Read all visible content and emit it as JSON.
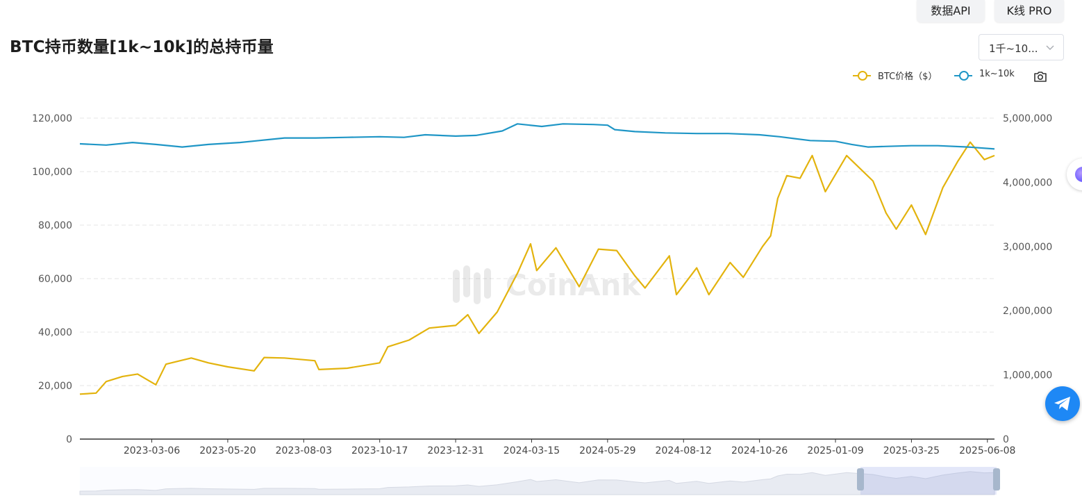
{
  "header": {
    "api_button": "数据API",
    "kline_button": "K线 PRO",
    "title": "BTC持币数量[1k~10k]的总持币量",
    "range_select": {
      "value": "1千~10...",
      "options": [
        "1千~10..."
      ]
    }
  },
  "legend": [
    {
      "name": "BTC价格（$）",
      "color": "#e3b30d"
    },
    {
      "name": "1k~10k",
      "color": "#1f96c6"
    }
  ],
  "icons": {
    "camera": "camera-icon",
    "telegram": "telegram-icon",
    "chevron": "chevron-down-icon"
  },
  "watermark": "CoinAnk",
  "chart_data": {
    "type": "line",
    "x_start": "2022-12-25",
    "x_end": "2025-06-15",
    "x_tick_labels": [
      "2023-03-06",
      "2023-05-20",
      "2023-08-03",
      "2023-10-17",
      "2023-12-31",
      "2024-03-15",
      "2024-05-29",
      "2024-08-12",
      "2024-10-26",
      "2025-01-09",
      "2025-03-25",
      "2025-06-08"
    ],
    "y_left": {
      "min": 0,
      "max": 120000,
      "ticks": [
        "0",
        "20,000",
        "40,000",
        "60,000",
        "80,000",
        "100,000",
        "120,000"
      ]
    },
    "y_right": {
      "min": 0,
      "max": 5000000,
      "ticks": [
        "0",
        "1,000,000",
        "2,000,000",
        "3,000,000",
        "4,000,000",
        "5,000,000"
      ]
    },
    "series": [
      {
        "name": "BTC价格（$）",
        "axis": "left",
        "color": "#e3b30d",
        "points": [
          [
            "2022-12-25",
            16800
          ],
          [
            "2023-01-10",
            17200
          ],
          [
            "2023-01-20",
            21500
          ],
          [
            "2023-02-05",
            23400
          ],
          [
            "2023-02-20",
            24300
          ],
          [
            "2023-03-10",
            20300
          ],
          [
            "2023-03-20",
            28000
          ],
          [
            "2023-04-14",
            30300
          ],
          [
            "2023-05-01",
            28500
          ],
          [
            "2023-05-20",
            27000
          ],
          [
            "2023-06-15",
            25500
          ],
          [
            "2023-06-25",
            30500
          ],
          [
            "2023-07-15",
            30300
          ],
          [
            "2023-08-14",
            29300
          ],
          [
            "2023-08-18",
            26000
          ],
          [
            "2023-09-15",
            26500
          ],
          [
            "2023-10-17",
            28500
          ],
          [
            "2023-10-25",
            34500
          ],
          [
            "2023-11-15",
            37000
          ],
          [
            "2023-12-05",
            41500
          ],
          [
            "2023-12-31",
            42500
          ],
          [
            "2024-01-12",
            46500
          ],
          [
            "2024-01-23",
            39500
          ],
          [
            "2024-02-10",
            47500
          ],
          [
            "2024-03-01",
            62000
          ],
          [
            "2024-03-14",
            73000
          ],
          [
            "2024-03-20",
            63000
          ],
          [
            "2024-04-08",
            71500
          ],
          [
            "2024-05-01",
            57000
          ],
          [
            "2024-05-20",
            71000
          ],
          [
            "2024-06-07",
            70500
          ],
          [
            "2024-06-25",
            61000
          ],
          [
            "2024-07-05",
            56500
          ],
          [
            "2024-07-29",
            68500
          ],
          [
            "2024-08-05",
            54000
          ],
          [
            "2024-08-25",
            64000
          ],
          [
            "2024-09-06",
            54000
          ],
          [
            "2024-09-27",
            66000
          ],
          [
            "2024-10-10",
            60500
          ],
          [
            "2024-10-29",
            72000
          ],
          [
            "2024-11-06",
            76000
          ],
          [
            "2024-11-13",
            90000
          ],
          [
            "2024-11-22",
            98500
          ],
          [
            "2024-12-05",
            97500
          ],
          [
            "2024-12-17",
            106000
          ],
          [
            "2024-12-30",
            92500
          ],
          [
            "2025-01-20",
            106000
          ],
          [
            "2025-02-15",
            96500
          ],
          [
            "2025-02-28",
            84500
          ],
          [
            "2025-03-10",
            78500
          ],
          [
            "2025-03-25",
            87500
          ],
          [
            "2025-04-08",
            76500
          ],
          [
            "2025-04-25",
            94000
          ],
          [
            "2025-05-10",
            104000
          ],
          [
            "2025-05-22",
            111000
          ],
          [
            "2025-06-05",
            104500
          ],
          [
            "2025-06-15",
            106000
          ]
        ]
      },
      {
        "name": "1k~10k",
        "axis": "right",
        "color": "#1f96c6",
        "points": [
          [
            "2022-12-25",
            4600000
          ],
          [
            "2023-01-20",
            4580000
          ],
          [
            "2023-02-15",
            4620000
          ],
          [
            "2023-03-10",
            4590000
          ],
          [
            "2023-04-05",
            4550000
          ],
          [
            "2023-05-01",
            4590000
          ],
          [
            "2023-06-01",
            4620000
          ],
          [
            "2023-06-20",
            4650000
          ],
          [
            "2023-07-15",
            4690000
          ],
          [
            "2023-08-15",
            4690000
          ],
          [
            "2023-09-15",
            4700000
          ],
          [
            "2023-10-17",
            4710000
          ],
          [
            "2023-11-10",
            4700000
          ],
          [
            "2023-12-01",
            4740000
          ],
          [
            "2023-12-31",
            4720000
          ],
          [
            "2024-01-20",
            4730000
          ],
          [
            "2024-02-15",
            4800000
          ],
          [
            "2024-03-01",
            4910000
          ],
          [
            "2024-03-25",
            4870000
          ],
          [
            "2024-04-15",
            4910000
          ],
          [
            "2024-05-15",
            4900000
          ],
          [
            "2024-05-29",
            4890000
          ],
          [
            "2024-06-05",
            4820000
          ],
          [
            "2024-06-25",
            4790000
          ],
          [
            "2024-07-25",
            4770000
          ],
          [
            "2024-08-25",
            4760000
          ],
          [
            "2024-09-25",
            4760000
          ],
          [
            "2024-10-26",
            4740000
          ],
          [
            "2024-11-15",
            4710000
          ],
          [
            "2024-12-15",
            4650000
          ],
          [
            "2025-01-09",
            4640000
          ],
          [
            "2025-01-25",
            4590000
          ],
          [
            "2025-02-10",
            4550000
          ],
          [
            "2025-03-01",
            4560000
          ],
          [
            "2025-03-25",
            4570000
          ],
          [
            "2025-04-20",
            4570000
          ],
          [
            "2025-05-20",
            4550000
          ],
          [
            "2025-06-15",
            4520000
          ]
        ]
      }
    ],
    "grid": {
      "horizontal_dashed": true
    },
    "legend_position": "top-right"
  }
}
